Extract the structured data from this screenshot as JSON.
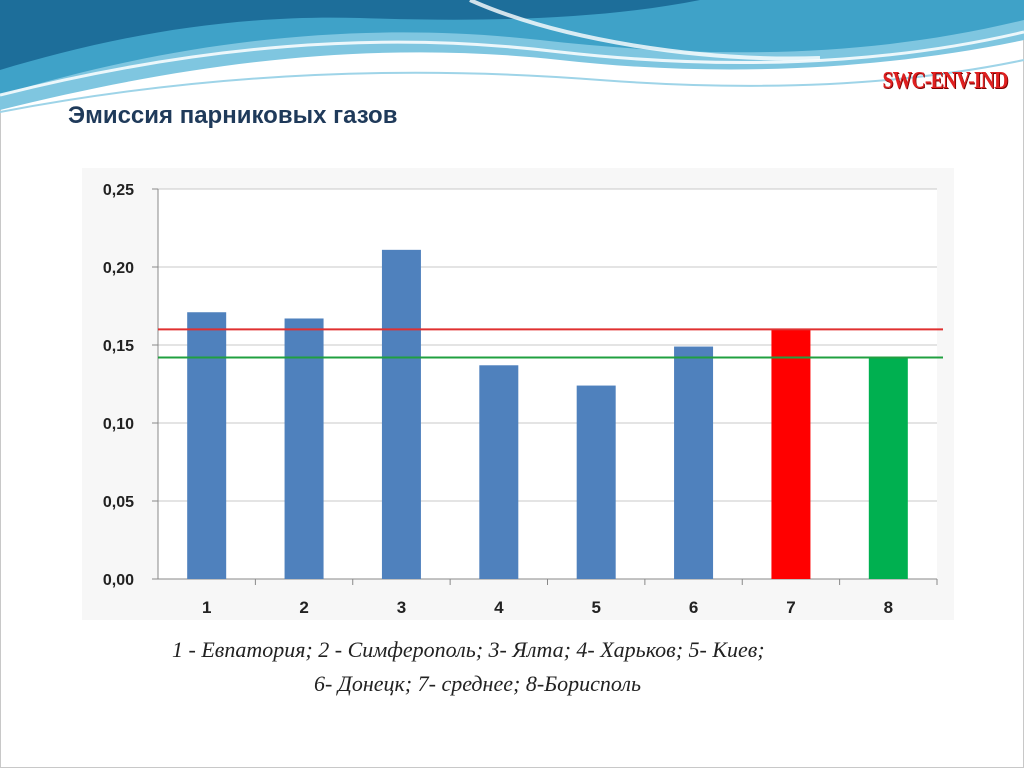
{
  "slide": {
    "title": "Эмиссия парниковых газов",
    "logo": "SWC-ENV-IND",
    "caption_line1": "1 - Евпатория; 2 - Симферополь; 3- Ялта;   4- Харьков; 5- Киев;",
    "caption_line2": "6- Донецк; 7- среднее; 8-Борисполь"
  },
  "chart_data": {
    "type": "bar",
    "title": "",
    "xlabel": "",
    "ylabel": "",
    "categories": [
      "1",
      "2",
      "3",
      "4",
      "5",
      "6",
      "7",
      "8"
    ],
    "values": [
      0.171,
      0.167,
      0.211,
      0.137,
      0.124,
      0.149,
      0.16,
      0.142
    ],
    "bar_colors": [
      "#4f81bd",
      "#4f81bd",
      "#4f81bd",
      "#4f81bd",
      "#4f81bd",
      "#4f81bd",
      "#ff0000",
      "#00b050"
    ],
    "ylim": [
      0,
      0.25
    ],
    "yticks": [
      "0,00",
      "0,05",
      "0,10",
      "0,15",
      "0,20",
      "0,25"
    ],
    "reference_lines": [
      {
        "value": 0.16,
        "color": "#e03030"
      },
      {
        "value": 0.142,
        "color": "#20a040"
      }
    ],
    "grid": true,
    "legend": "none"
  }
}
